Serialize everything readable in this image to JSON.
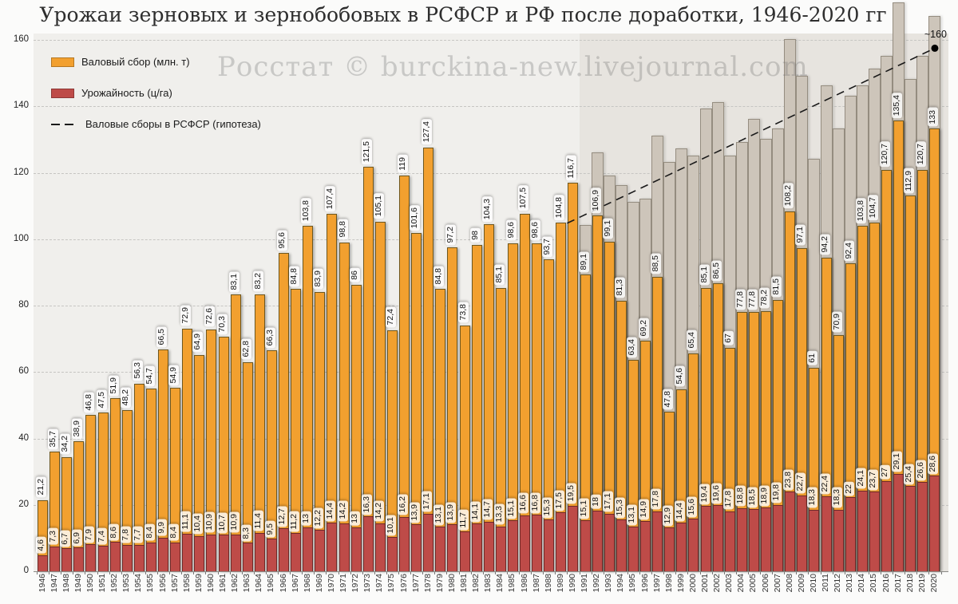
{
  "title": "Урожаи зерновых и зернобобовых в РСФСР и РФ после доработки, 1946-2020 гг",
  "watermark": "Росстат © burckina-new.livejournal.com",
  "y_axis": {
    "ticks": [
      0,
      20,
      40,
      60,
      80,
      100,
      120,
      140,
      160
    ]
  },
  "chart_data": {
    "type": "bar",
    "years": [
      1946,
      1947,
      1948,
      1949,
      1950,
      1951,
      1952,
      1953,
      1954,
      1955,
      1956,
      1957,
      1958,
      1959,
      1960,
      1961,
      1962,
      1963,
      1964,
      1965,
      1966,
      1967,
      1968,
      1969,
      1970,
      1971,
      1972,
      1973,
      1974,
      1975,
      1976,
      1977,
      1978,
      1979,
      1980,
      1981,
      1982,
      1983,
      1984,
      1985,
      1986,
      1987,
      1988,
      1989,
      1990,
      1991,
      1992,
      1993,
      1994,
      1995,
      1996,
      1997,
      1998,
      1999,
      2000,
      2001,
      2002,
      2003,
      2004,
      2005,
      2006,
      2007,
      2008,
      2009,
      2010,
      2011,
      2012,
      2013,
      2014,
      2015,
      2016,
      2017,
      2018,
      2019,
      2020
    ],
    "series": [
      {
        "name": "Валовый сбор (млн. т)",
        "color": "#F2A02F",
        "values": [
          21.2,
          35.7,
          34.2,
          38.9,
          46.8,
          47.5,
          51.9,
          48.2,
          56.3,
          54.7,
          66.5,
          54.9,
          72.9,
          64.9,
          72.6,
          70.3,
          83.1,
          62.8,
          83.2,
          66.3,
          95.6,
          84.8,
          103.8,
          83.9,
          107.4,
          98.8,
          86,
          121.5,
          105.1,
          72.4,
          119,
          101.6,
          127.4,
          84.8,
          97.2,
          73.8,
          98,
          104.3,
          85.1,
          98.6,
          107.5,
          98.6,
          93.7,
          104.8,
          116.7,
          89.1,
          106.9,
          99.1,
          81.3,
          63.4,
          69.2,
          88.5,
          47.8,
          54.6,
          65.4,
          85.1,
          86.5,
          67,
          77.8,
          77.8,
          78.2,
          81.5,
          108.2,
          97.1,
          61,
          94.2,
          70.9,
          92.4,
          103.8,
          104.7,
          120.7,
          135.4,
          112.9,
          120.7,
          133
        ]
      },
      {
        "name": "Урожайность (ц/га)",
        "color": "#BE4B48",
        "values": [
          4.6,
          7.3,
          6.7,
          6.9,
          7.9,
          7.4,
          8.6,
          7.8,
          7.7,
          8.4,
          9.9,
          8.4,
          11.1,
          10.4,
          10.9,
          10.7,
          10.9,
          8.3,
          11.4,
          9.5,
          12.7,
          11.2,
          13,
          12.2,
          14.4,
          14.2,
          13,
          16.3,
          14.2,
          10.1,
          16.2,
          13.9,
          17.1,
          13.1,
          13.9,
          11.7,
          14.1,
          14.7,
          13.3,
          15.1,
          16.6,
          16.8,
          15.3,
          17.5,
          19.5,
          15.1,
          18,
          17.1,
          15.3,
          13.1,
          14.9,
          17.8,
          12.9,
          14.4,
          15.6,
          19.4,
          19.6,
          17.8,
          18.8,
          18.5,
          18.9,
          19.8,
          23.8,
          22.7,
          18.3,
          22.4,
          18.3,
          22,
          24.1,
          23.7,
          27,
          29.1,
          25.4,
          26.6,
          28.6
        ]
      },
      {
        "name": "Валовые сборы в РСФСР (гипотеза)",
        "color": "#CDC5BA",
        "from_year": 1991,
        "values": [
          104,
          126,
          119,
          116,
          111,
          112,
          131,
          123,
          127,
          125,
          139,
          141,
          125,
          129,
          136,
          130,
          133,
          160,
          149,
          124,
          146,
          133,
          143,
          146,
          151,
          155,
          171,
          148,
          155,
          167
        ]
      }
    ],
    "shaded_from_year": 1991,
    "trend_line": {
      "style": "dashed",
      "points": [
        {
          "year": 1989.5,
          "value": 104.8
        },
        {
          "year": 2020,
          "value": 157.5
        }
      ],
      "label": "~160"
    },
    "ylim": [
      0,
      172
    ],
    "grid": true,
    "legend_position": "top-left"
  }
}
